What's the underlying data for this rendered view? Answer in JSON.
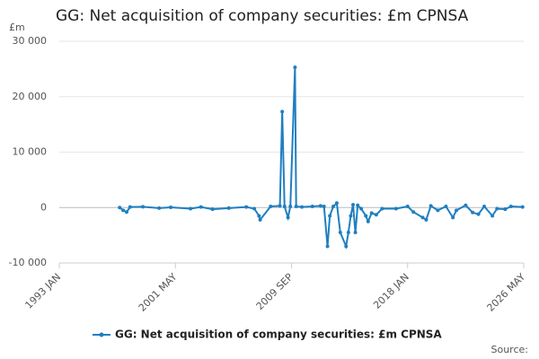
{
  "chart_data": {
    "type": "line",
    "title": "GG: Net acquisition of company securities: £m CPNSA",
    "y_unit": "£m",
    "source": "Source:",
    "x": [
      "1997 MAY",
      "1997 AUG",
      "1997 NOV",
      "1998 FEB",
      "1999 JAN",
      "2000 MAR",
      "2001 JAN",
      "2002 JUN",
      "2003 MAR",
      "2004 JAN",
      "2005 MAR",
      "2006 JUN",
      "2007 JAN",
      "2007 MAY",
      "2007 JUN",
      "2008 MAR",
      "2008 NOV",
      "2009 JAN",
      "2009 MAR",
      "2009 JUN",
      "2009 AUG",
      "2009 DEC",
      "2010 JAN",
      "2010 JUN",
      "2011 MAR",
      "2011 OCT",
      "2012 JAN",
      "2012 APR",
      "2012 JUN",
      "2012 SEP",
      "2012 DEC",
      "2013 MAR",
      "2013 AUG",
      "2013 OCT",
      "2013 DEC",
      "2014 FEB",
      "2014 APR",
      "2014 JUN",
      "2014 SEP",
      "2015 JAN",
      "2015 MAR",
      "2015 JUN",
      "2015 OCT",
      "2016 MAR",
      "2017 MAR",
      "2018 JAN",
      "2018 JUN",
      "2019 FEB",
      "2019 MAY",
      "2019 SEP",
      "2020 MAR",
      "2020 OCT",
      "2021 APR",
      "2021 JUL",
      "2022 MAR",
      "2022 SEP",
      "2023 FEB",
      "2023 JUL",
      "2024 FEB",
      "2024 JUN",
      "2025 JAN",
      "2025 JUN",
      "2026 APR"
    ],
    "series": [
      {
        "name": "GG: Net acquisition of company securities: £m CPNSA",
        "color": "#1f7fc0",
        "values": [
          0,
          -500,
          -800,
          100,
          150,
          -100,
          50,
          -200,
          100,
          -300,
          -100,
          100,
          -200,
          -1500,
          -2200,
          200,
          300,
          17300,
          200,
          -1800,
          200,
          25300,
          200,
          100,
          200,
          300,
          200,
          -7000,
          -1500,
          200,
          800,
          -4500,
          -7000,
          -4500,
          -1500,
          500,
          -4500,
          400,
          -200,
          -1500,
          -2500,
          -1000,
          -1300,
          -200,
          -200,
          200,
          -800,
          -1800,
          -2200,
          300,
          -500,
          200,
          -1800,
          -500,
          400,
          -900,
          -1200,
          200,
          -1500,
          -200,
          -300,
          200,
          100
        ]
      }
    ],
    "xlim": [
      "1993 JAN",
      "2026 MAY"
    ],
    "xticks": [
      "1993 JAN",
      "2001 MAY",
      "2009 SEP",
      "2018 JAN",
      "2026 MAY"
    ],
    "ylim": [
      -10000,
      30000
    ],
    "yticks": [
      {
        "value": -10000,
        "label": "-10 000"
      },
      0,
      {
        "value": 10000,
        "label": "10 000"
      },
      {
        "value": 20000,
        "label": "20 000"
      },
      {
        "value": 30000,
        "label": "30 000"
      }
    ],
    "grid": true
  }
}
